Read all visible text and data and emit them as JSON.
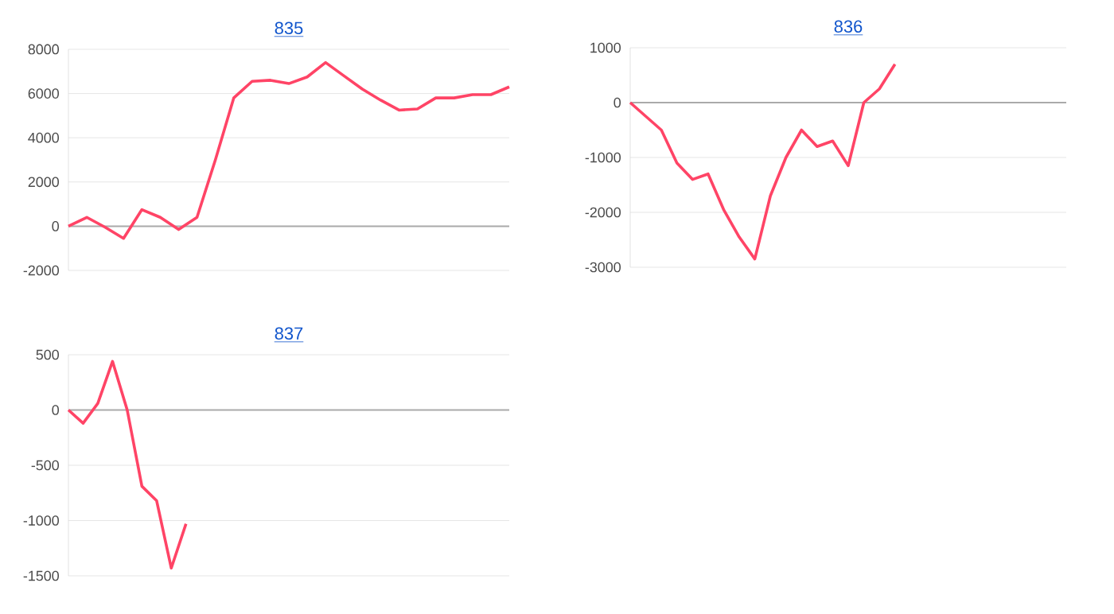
{
  "chart_data": [
    {
      "type": "line",
      "title": "835",
      "categories": [
        null,
        null,
        null,
        null,
        null,
        null,
        null,
        null,
        null,
        null,
        null,
        null,
        null,
        null,
        null,
        null,
        null,
        null,
        null,
        null,
        null,
        null,
        null,
        null,
        null
      ],
      "series": [
        {
          "color": "#ff4466",
          "values": [
            0,
            400,
            -50,
            -550,
            750,
            400,
            -150,
            400,
            3000,
            5800,
            6550,
            6600,
            6450,
            6750,
            7400,
            6800,
            6200,
            5700,
            5250,
            5300,
            5800,
            5800,
            5950,
            5950,
            6300
          ]
        }
      ],
      "ylim": [
        -2000,
        8000
      ],
      "yticks": [
        -2000,
        0,
        2000,
        4000,
        6000,
        8000
      ],
      "grid": "y",
      "tick_labels": "y",
      "ref_lines": [
        {
          "axis": "y",
          "value": 0,
          "color": "#aaaaaa"
        }
      ]
    },
    {
      "type": "line",
      "title": "836",
      "categories": [
        null,
        null,
        null,
        null,
        null,
        null,
        null,
        null,
        null,
        null,
        null,
        null,
        null,
        null,
        null,
        null,
        null,
        null,
        null,
        null,
        null,
        null,
        null,
        null,
        null,
        null,
        null,
        null,
        null
      ],
      "series": [
        {
          "color": "#ff4466",
          "values": [
            0,
            -250,
            -500,
            -1100,
            -1400,
            -1300,
            -1950,
            -2450,
            -2850,
            -1700,
            -1000,
            -500,
            -800,
            -700,
            -1150,
            0,
            250,
            700,
            null,
            null,
            null,
            null,
            null,
            null,
            null,
            null,
            null,
            null,
            null
          ]
        }
      ],
      "ylim": [
        -3000,
        1000
      ],
      "yticks": [
        -3000,
        -2000,
        -1000,
        0,
        1000
      ],
      "grid": "y",
      "tick_labels": "y",
      "ref_lines": [
        {
          "axis": "y",
          "value": 0,
          "color": "#aaaaaa"
        }
      ]
    },
    {
      "type": "line",
      "title": "837",
      "categories": [
        null,
        null,
        null,
        null,
        null,
        null,
        null,
        null,
        null,
        null,
        null,
        null,
        null,
        null,
        null,
        null,
        null,
        null,
        null,
        null,
        null,
        null,
        null,
        null,
        null,
        null,
        null,
        null,
        null,
        null,
        null
      ],
      "series": [
        {
          "color": "#ff4466",
          "values": [
            0,
            -120,
            60,
            440,
            0,
            -690,
            -820,
            -1430,
            -1030,
            null,
            null,
            null,
            null,
            null,
            null,
            null,
            null,
            null,
            null,
            null,
            null,
            null,
            null,
            null,
            null,
            null,
            null,
            null,
            null,
            null,
            null
          ]
        }
      ],
      "ylim": [
        -1500,
        500
      ],
      "yticks": [
        -1500,
        -1000,
        -500,
        0,
        500
      ],
      "grid": "y",
      "tick_labels": "y",
      "ref_lines": [
        {
          "axis": "y",
          "value": 0,
          "color": "#aaaaaa"
        }
      ]
    }
  ]
}
